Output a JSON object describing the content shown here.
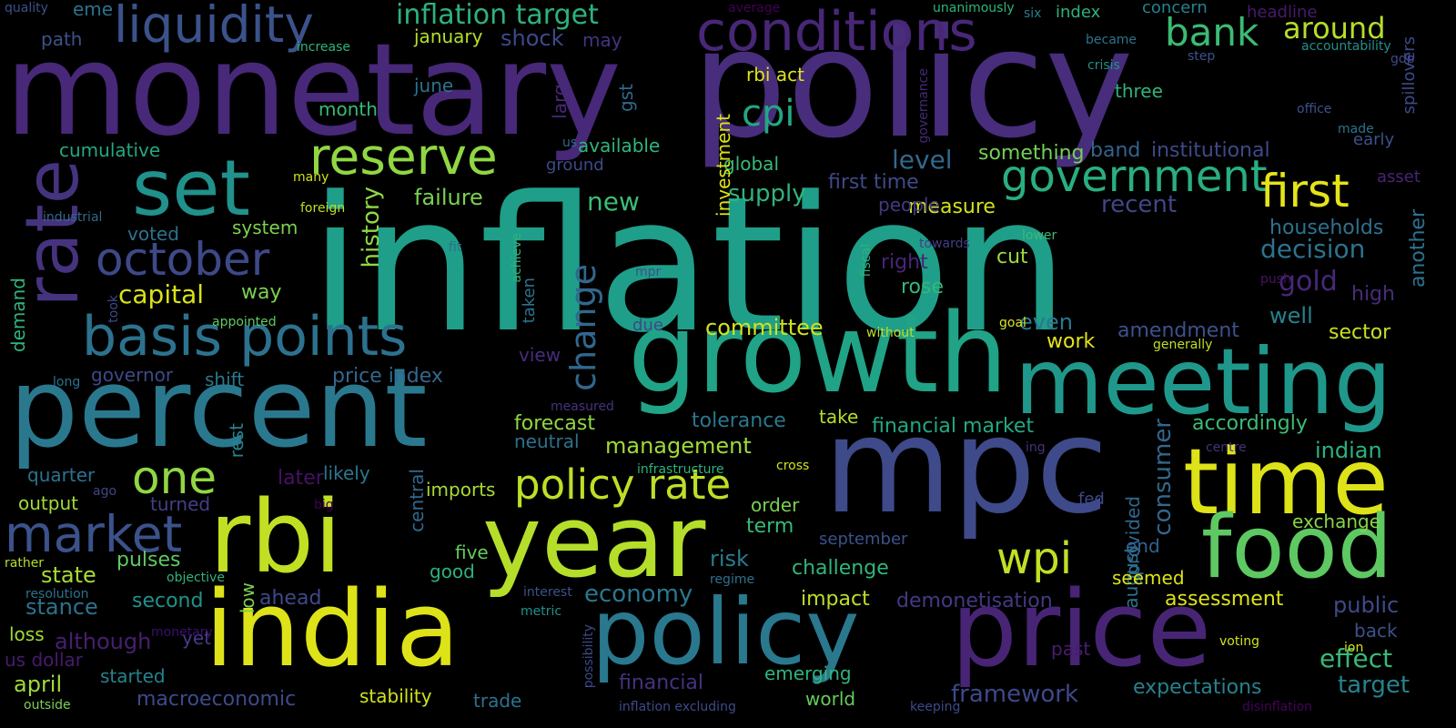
{
  "canvas": {
    "background": "#000000"
  },
  "words": [
    {
      "text": "inflation",
      "color": "#1f9e89"
    },
    {
      "text": "monetary",
      "color": "#482878"
    },
    {
      "text": "policy",
      "color": "#472d7b"
    },
    {
      "text": "mpc",
      "color": "#3e4a89"
    },
    {
      "text": "growth",
      "color": "#20a386"
    },
    {
      "text": "percent",
      "color": "#2a788e"
    },
    {
      "text": "meeting",
      "color": "#1f988b"
    },
    {
      "text": "rbi",
      "color": "#c2df23"
    },
    {
      "text": "year",
      "color": "#b5de2b"
    },
    {
      "text": "india",
      "color": "#dde318"
    },
    {
      "text": "price",
      "color": "#482475"
    },
    {
      "text": "policy",
      "color": "#2a788e"
    },
    {
      "text": "time",
      "color": "#dde318"
    },
    {
      "text": "food",
      "color": "#5ec962"
    },
    {
      "text": "rate",
      "color": "#46337e"
    },
    {
      "text": "set",
      "color": "#21918c"
    },
    {
      "text": "conditions",
      "color": "#482777"
    },
    {
      "text": "basis points",
      "color": "#2c728e"
    },
    {
      "text": "liquidity",
      "color": "#3b528b"
    },
    {
      "text": "reserve",
      "color": "#90d743"
    },
    {
      "text": "market",
      "color": "#3b528b"
    },
    {
      "text": "october",
      "color": "#3e4989"
    },
    {
      "text": "one",
      "color": "#90d743"
    },
    {
      "text": "government",
      "color": "#29af7f"
    },
    {
      "text": "first",
      "color": "#e5e419"
    },
    {
      "text": "policy rate",
      "color": "#bddf26"
    },
    {
      "text": "wpi",
      "color": "#c2df23"
    },
    {
      "text": "bank",
      "color": "#3bbb75"
    },
    {
      "text": "cpi",
      "color": "#22a884"
    },
    {
      "text": "change",
      "color": "#31688e"
    },
    {
      "text": "inflation target",
      "color": "#2db27d"
    },
    {
      "text": "around",
      "color": "#b5de2b"
    },
    {
      "text": "capital",
      "color": "#d8e219"
    },
    {
      "text": "consumer",
      "color": "#31688e"
    },
    {
      "text": "decision",
      "color": "#2c728e"
    },
    {
      "text": "economy",
      "color": "#2a788e"
    },
    {
      "text": "committee",
      "color": "#d2e21b"
    },
    {
      "text": "framework",
      "color": "#3e4989"
    },
    {
      "text": "assessment",
      "color": "#dde318"
    },
    {
      "text": "management",
      "color": "#9fda3a"
    },
    {
      "text": "demonetisation",
      "color": "#443983"
    },
    {
      "text": "expectations",
      "color": "#26828e"
    },
    {
      "text": "target",
      "color": "#26828e"
    },
    {
      "text": "effect",
      "color": "#38b977"
    },
    {
      "text": "public",
      "color": "#3e4a89"
    },
    {
      "text": "financial market",
      "color": "#22a884"
    },
    {
      "text": "forecast",
      "color": "#90d743"
    },
    {
      "text": "state",
      "color": "#a8db34"
    },
    {
      "text": "stance",
      "color": "#2c728e"
    },
    {
      "text": "gold",
      "color": "#482878"
    },
    {
      "text": "households",
      "color": "#2c728e"
    },
    {
      "text": "supply",
      "color": "#2fb47c"
    },
    {
      "text": "history",
      "color": "#90d743"
    },
    {
      "text": "failure",
      "color": "#7ad151"
    },
    {
      "text": "new",
      "color": "#3dbc74"
    },
    {
      "text": "level",
      "color": "#31688e"
    },
    {
      "text": "first time",
      "color": "#3e4a89"
    },
    {
      "text": "institutional",
      "color": "#3e4989"
    },
    {
      "text": "band",
      "color": "#33638d"
    },
    {
      "text": "something",
      "color": "#73d056"
    },
    {
      "text": "measure",
      "color": "#d2e21b"
    },
    {
      "text": "recent",
      "color": "#404688"
    },
    {
      "text": "people",
      "color": "#443983"
    },
    {
      "text": "right",
      "color": "#482576"
    },
    {
      "text": "rose",
      "color": "#35b779"
    },
    {
      "text": "cut",
      "color": "#9fda3a"
    },
    {
      "text": "even",
      "color": "#2a788e"
    },
    {
      "text": "work",
      "color": "#e5e419"
    },
    {
      "text": "amendment",
      "color": "#3b528b"
    },
    {
      "text": "well",
      "color": "#26828e"
    },
    {
      "text": "sector",
      "color": "#c8e020"
    },
    {
      "text": "high",
      "color": "#472c7a"
    },
    {
      "text": "another",
      "color": "#2c728e"
    },
    {
      "text": "accordingly",
      "color": "#3dbc74"
    },
    {
      "text": "indian",
      "color": "#2db27d"
    },
    {
      "text": "exchange",
      "color": "#86d549"
    },
    {
      "text": "tolerance",
      "color": "#2a788e"
    },
    {
      "text": "take",
      "color": "#b5de2b"
    },
    {
      "text": "neutral",
      "color": "#2c728e"
    },
    {
      "text": "likely",
      "color": "#2a788e"
    },
    {
      "text": "later",
      "color": "#471164"
    },
    {
      "text": "quarter",
      "color": "#2c728e"
    },
    {
      "text": "output",
      "color": "#a2da37"
    },
    {
      "text": "turned",
      "color": "#433e85"
    },
    {
      "text": "imports",
      "color": "#a8db34"
    },
    {
      "text": "central",
      "color": "#31688e"
    },
    {
      "text": "five",
      "color": "#65cb5e"
    },
    {
      "text": "good",
      "color": "#2db27d"
    },
    {
      "text": "pulses",
      "color": "#5ec962"
    },
    {
      "text": "second",
      "color": "#21918c"
    },
    {
      "text": "ahead",
      "color": "#3e4989"
    },
    {
      "text": "although",
      "color": "#481f70"
    },
    {
      "text": "yet",
      "color": "#433e85"
    },
    {
      "text": "low",
      "color": "#7ad151"
    },
    {
      "text": "loss",
      "color": "#a2da37"
    },
    {
      "text": "us dollar",
      "color": "#481b6d"
    },
    {
      "text": "april",
      "color": "#9fda3a"
    },
    {
      "text": "started",
      "color": "#26828e"
    },
    {
      "text": "macroeconomic",
      "color": "#3e4a89"
    },
    {
      "text": "stability",
      "color": "#d2e21b"
    },
    {
      "text": "trade",
      "color": "#2c728e"
    },
    {
      "text": "financial",
      "color": "#46327e"
    },
    {
      "text": "emerging",
      "color": "#2fb47c"
    },
    {
      "text": "world",
      "color": "#65cb5e"
    },
    {
      "text": "impact",
      "color": "#bddf26"
    },
    {
      "text": "challenge",
      "color": "#31b57b"
    },
    {
      "text": "risk",
      "color": "#287c8e"
    },
    {
      "text": "term",
      "color": "#38b977"
    },
    {
      "text": "order",
      "color": "#7ad151"
    },
    {
      "text": "september",
      "color": "#3b528b"
    },
    {
      "text": "august",
      "color": "#2c728e"
    },
    {
      "text": "provided",
      "color": "#31688e"
    },
    {
      "text": "end",
      "color": "#33638d"
    },
    {
      "text": "seemed",
      "color": "#dde318"
    },
    {
      "text": "fed",
      "color": "#3e4989"
    },
    {
      "text": "past",
      "color": "#481d6f"
    },
    {
      "text": "back",
      "color": "#3b528b"
    },
    {
      "text": "governor",
      "color": "#3e4989"
    },
    {
      "text": "shift",
      "color": "#2a788e"
    },
    {
      "text": "price index",
      "color": "#31688e"
    },
    {
      "text": "voted",
      "color": "#2c728e"
    },
    {
      "text": "system",
      "color": "#7ad151"
    },
    {
      "text": "way",
      "color": "#7ad151"
    },
    {
      "text": "cumulative",
      "color": "#22a884"
    },
    {
      "text": "month",
      "color": "#38b977"
    },
    {
      "text": "june",
      "color": "#2c728e"
    },
    {
      "text": "january",
      "color": "#b5de2b"
    },
    {
      "text": "shock",
      "color": "#3e4989"
    },
    {
      "text": "may",
      "color": "#46337e"
    },
    {
      "text": "index",
      "color": "#2db27d"
    },
    {
      "text": "six",
      "color": "#287c8e"
    },
    {
      "text": "concern",
      "color": "#26828e"
    },
    {
      "text": "headline",
      "color": "#481a6c"
    },
    {
      "text": "rbi act",
      "color": "#dde318"
    },
    {
      "text": "three",
      "color": "#2fb47c"
    },
    {
      "text": "gst",
      "color": "#31688e"
    },
    {
      "text": "large",
      "color": "#482878"
    },
    {
      "text": "available",
      "color": "#31b57b"
    },
    {
      "text": "ground",
      "color": "#3e4a89"
    },
    {
      "text": "us",
      "color": "#31688e"
    },
    {
      "text": "global",
      "color": "#38b977"
    },
    {
      "text": "early",
      "color": "#3b528b"
    },
    {
      "text": "asset",
      "color": "#482475"
    },
    {
      "text": "spillovers",
      "color": "#3e4a89"
    },
    {
      "text": "made",
      "color": "#2c728e"
    },
    {
      "text": "office",
      "color": "#3b528b"
    },
    {
      "text": "investment",
      "color": "#dde318"
    },
    {
      "text": "view",
      "color": "#472d7b"
    },
    {
      "text": "due",
      "color": "#3e4989"
    },
    {
      "text": "taken",
      "color": "#2c728e"
    },
    {
      "text": "infrastructure",
      "color": "#2db27d"
    },
    {
      "text": "cross",
      "color": "#d2e21b"
    },
    {
      "text": "big",
      "color": "#440154"
    },
    {
      "text": "ago",
      "color": "#404688"
    },
    {
      "text": "rather",
      "color": "#b5de2b"
    },
    {
      "text": "resolution",
      "color": "#2c728e"
    },
    {
      "text": "objective",
      "color": "#2fb47c"
    },
    {
      "text": "monetary",
      "color": "#3b0f70"
    },
    {
      "text": "outside",
      "color": "#7ad151"
    },
    {
      "text": "interest",
      "color": "#3b528b"
    },
    {
      "text": "metric",
      "color": "#21918c"
    },
    {
      "text": "regime",
      "color": "#2c728e"
    },
    {
      "text": "possibility",
      "color": "#3e4989"
    },
    {
      "text": "inflation excluding",
      "color": "#3e4989"
    },
    {
      "text": "keeping",
      "color": "#3e4989"
    },
    {
      "text": "voting",
      "color": "#d2e21b"
    },
    {
      "text": "ion",
      "color": "#d2e21b"
    },
    {
      "text": "disinflation",
      "color": "#450457"
    },
    {
      "text": "generally",
      "color": "#c2df23"
    },
    {
      "text": "goal",
      "color": "#dde318"
    },
    {
      "text": "without",
      "color": "#bddf26"
    },
    {
      "text": "ing",
      "color": "#46327e"
    },
    {
      "text": "centre",
      "color": "#46337e"
    },
    {
      "text": "measured",
      "color": "#46327e"
    },
    {
      "text": "push",
      "color": "#471164"
    },
    {
      "text": "fiscal",
      "color": "#2db27d"
    },
    {
      "text": "lower",
      "color": "#3bbb75"
    },
    {
      "text": "towards",
      "color": "#433e85"
    },
    {
      "text": "mpr",
      "color": "#3b528b"
    },
    {
      "text": "fit",
      "color": "#2c728e"
    },
    {
      "text": "achieve",
      "color": "#2fb47c"
    },
    {
      "text": "foreign",
      "color": "#c2df23"
    },
    {
      "text": "many",
      "color": "#d2e21b"
    },
    {
      "text": "industrial",
      "color": "#31688e"
    },
    {
      "text": "demand",
      "color": "#2fb47c"
    },
    {
      "text": "took",
      "color": "#3e4a89"
    },
    {
      "text": "appointed",
      "color": "#5ec962"
    },
    {
      "text": "long",
      "color": "#2c728e"
    },
    {
      "text": "rest",
      "color": "#26828e"
    },
    {
      "text": "quality",
      "color": "#3b528b"
    },
    {
      "text": "eme",
      "color": "#2c728e"
    },
    {
      "text": "path",
      "color": "#3b528b"
    },
    {
      "text": "increase",
      "color": "#2fb47c"
    },
    {
      "text": "average",
      "color": "#440154"
    },
    {
      "text": "unanimously",
      "color": "#2fb47c"
    },
    {
      "text": "became",
      "color": "#2c728e"
    },
    {
      "text": "crisis",
      "color": "#21918c"
    },
    {
      "text": "step",
      "color": "#3b528b"
    },
    {
      "text": "accountability",
      "color": "#21918c"
    },
    {
      "text": "gdp",
      "color": "#3e4a89"
    },
    {
      "text": "governance",
      "color": "#482878"
    }
  ]
}
